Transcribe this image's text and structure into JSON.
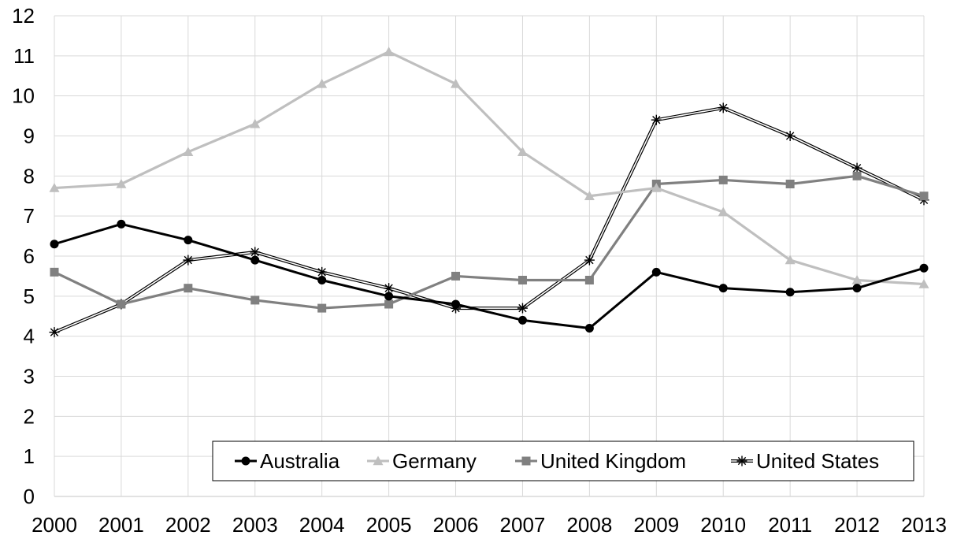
{
  "chart_data": {
    "type": "line",
    "title": "",
    "xlabel": "",
    "ylabel": "",
    "x": [
      "2000",
      "2001",
      "2002",
      "2003",
      "2004",
      "2005",
      "2006",
      "2007",
      "2008",
      "2009",
      "2010",
      "2011",
      "2012",
      "2013"
    ],
    "ylim": [
      0,
      12
    ],
    "yticks": [
      "0",
      "1",
      "2",
      "3",
      "4",
      "5",
      "6",
      "7",
      "8",
      "9",
      "10",
      "11",
      "12"
    ],
    "grid": true,
    "legend_position": "bottom-right",
    "series": [
      {
        "name": "Australia",
        "color": "#000000",
        "marker": "circle",
        "values": [
          6.3,
          6.8,
          6.4,
          5.9,
          5.4,
          5.0,
          4.8,
          4.4,
          4.2,
          5.6,
          5.2,
          5.1,
          5.2,
          5.7
        ]
      },
      {
        "name": "Germany",
        "color": "#bfbfbf",
        "marker": "triangle",
        "values": [
          7.7,
          7.8,
          8.6,
          9.3,
          10.3,
          11.1,
          10.3,
          8.6,
          7.5,
          7.7,
          7.1,
          5.9,
          5.4,
          5.3
        ]
      },
      {
        "name": "United Kingdom",
        "color": "#808080",
        "marker": "square",
        "values": [
          5.6,
          4.8,
          5.2,
          4.9,
          4.7,
          4.8,
          5.5,
          5.4,
          5.4,
          7.8,
          7.9,
          7.8,
          8.0,
          7.5
        ]
      },
      {
        "name": "United States",
        "color": "#000000",
        "marker": "star",
        "line_style": "double",
        "values": [
          4.1,
          4.8,
          5.9,
          6.1,
          5.6,
          5.2,
          4.7,
          4.7,
          5.9,
          9.4,
          9.7,
          9.0,
          8.2,
          7.4
        ]
      }
    ]
  }
}
